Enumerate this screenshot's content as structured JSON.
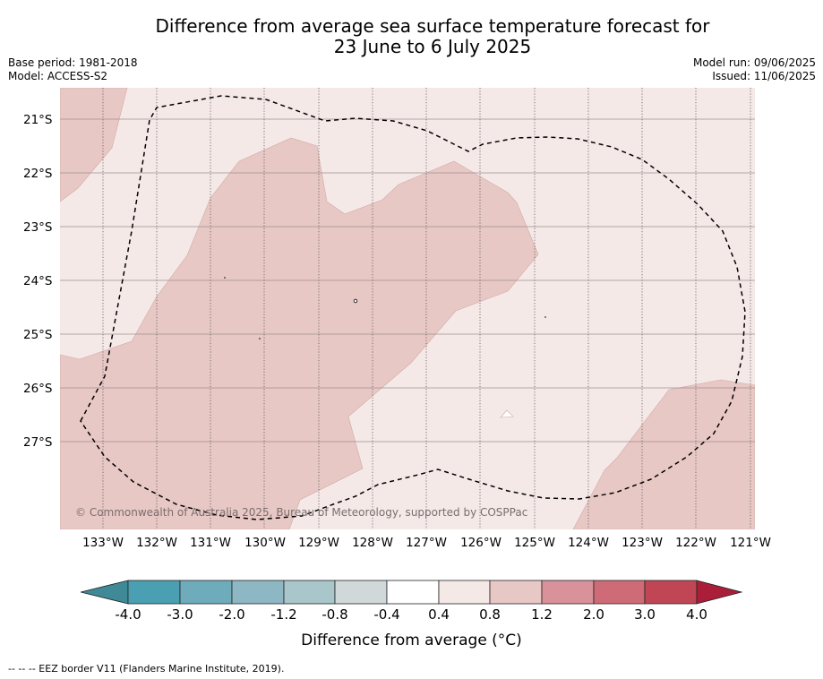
{
  "header": {
    "title_line1": "Difference from average sea surface temperature forecast for",
    "title_line2": "23 June to 6 July 2025",
    "base_period": "Base period: 1981-2018",
    "model": "Model: ACCESS-S2",
    "model_run": "Model run: 09/06/2025",
    "issued": "Issued: 11/06/2025"
  },
  "map": {
    "latitude_labels": [
      "21°S",
      "22°S",
      "23°S",
      "24°S",
      "25°S",
      "26°S",
      "27°S"
    ],
    "longitude_labels": [
      "133°W",
      "132°W",
      "131°W",
      "130°W",
      "129°W",
      "128°W",
      "127°W",
      "126°W",
      "125°W",
      "124°W",
      "123°W",
      "122°W",
      "121°W"
    ],
    "copyright": "© Commonwealth of Australia 2025, Bureau of Meteorology, supported by COSPPac",
    "colors": {
      "background_band": "#f5e9e8",
      "band_0_8_to_1_2": "#e8c8c5",
      "band_minus_0_4_to_0_4": "#ffffff",
      "eez_border": "#000000"
    }
  },
  "colorbar": {
    "title": "Difference from average (°C)",
    "tick_labels": [
      "-4.0",
      "-3.0",
      "-2.0",
      "-1.2",
      "-0.8",
      "-0.4",
      "0.4",
      "0.8",
      "1.2",
      "2.0",
      "3.0",
      "4.0"
    ],
    "colors": [
      "#3f8a96",
      "#4aa0b2",
      "#6eacbc",
      "#8db7c3",
      "#a9c6cb",
      "#d0d8da",
      "#ffffff",
      "#f5e9e8",
      "#e8c8c5",
      "#d9929a",
      "#cf6b76",
      "#c04656",
      "#ab1e3a"
    ]
  },
  "footnote": "-- -- -- EEZ border V11 (Flanders Marine Institute, 2019)."
}
